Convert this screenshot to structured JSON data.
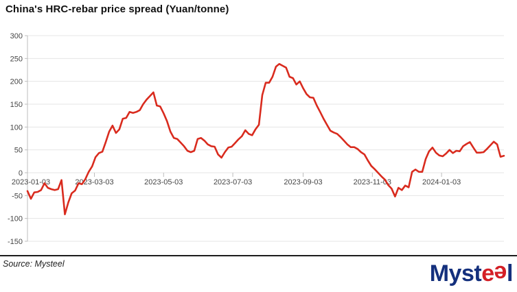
{
  "header": {
    "title": "China's HRC-rebar price spread (Yuan/tonne)"
  },
  "footer": {
    "source": "Source: Mysteel",
    "logo_myst": "Myst",
    "logo_e1": "e",
    "logo_e2": "e",
    "logo_l": "l"
  },
  "colors": {
    "line": "#d92b1e",
    "gridline": "#e4e4e4",
    "axis": "#bdbdbd",
    "logo_navy": "#14307d",
    "logo_red": "#d41f26"
  },
  "chart_data": {
    "type": "line",
    "title": "China's HRC-rebar price spread (Yuan/tonne)",
    "xlabel": "",
    "ylabel": "",
    "ylim": [
      -150,
      300
    ],
    "y_ticks": [
      300,
      250,
      200,
      150,
      100,
      50,
      0,
      -50,
      -100,
      -150
    ],
    "x_tick_labels": [
      "2023-01-03",
      "2023-03-03",
      "2023-05-03",
      "2023-07-03",
      "2023-09-03",
      "2023-11-03",
      "2024-01-03"
    ],
    "grid": "horizontal",
    "legend": "none",
    "series": [
      {
        "name": "HRC-rebar price spread",
        "x_start": "2023-01-03",
        "x_step_days": 3,
        "values": [
          -40,
          -57,
          -43,
          -42,
          -38,
          -23,
          -33,
          -36,
          -38,
          -36,
          -16,
          -91,
          -65,
          -45,
          -39,
          -23,
          -25,
          -14,
          2,
          14,
          34,
          43,
          46,
          67,
          90,
          103,
          87,
          95,
          118,
          120,
          133,
          131,
          133,
          137,
          150,
          160,
          168,
          176,
          147,
          145,
          130,
          113,
          90,
          76,
          74,
          66,
          58,
          48,
          45,
          48,
          74,
          76,
          70,
          62,
          58,
          57,
          40,
          33,
          45,
          55,
          57,
          65,
          73,
          80,
          93,
          85,
          82,
          95,
          105,
          170,
          197,
          197,
          210,
          232,
          238,
          234,
          230,
          210,
          207,
          193,
          200,
          185,
          172,
          165,
          164,
          147,
          133,
          118,
          105,
          92,
          88,
          85,
          78,
          70,
          62,
          56,
          56,
          52,
          45,
          40,
          27,
          15,
          8,
          0,
          -8,
          -15,
          -27,
          -35,
          -52,
          -33,
          -38,
          -28,
          -32,
          2,
          7,
          2,
          2,
          30,
          47,
          55,
          44,
          38,
          36,
          42,
          50,
          43,
          48,
          47,
          58,
          63,
          67,
          55,
          44,
          44,
          45,
          52,
          60,
          68,
          62,
          35,
          37
        ]
      }
    ]
  }
}
